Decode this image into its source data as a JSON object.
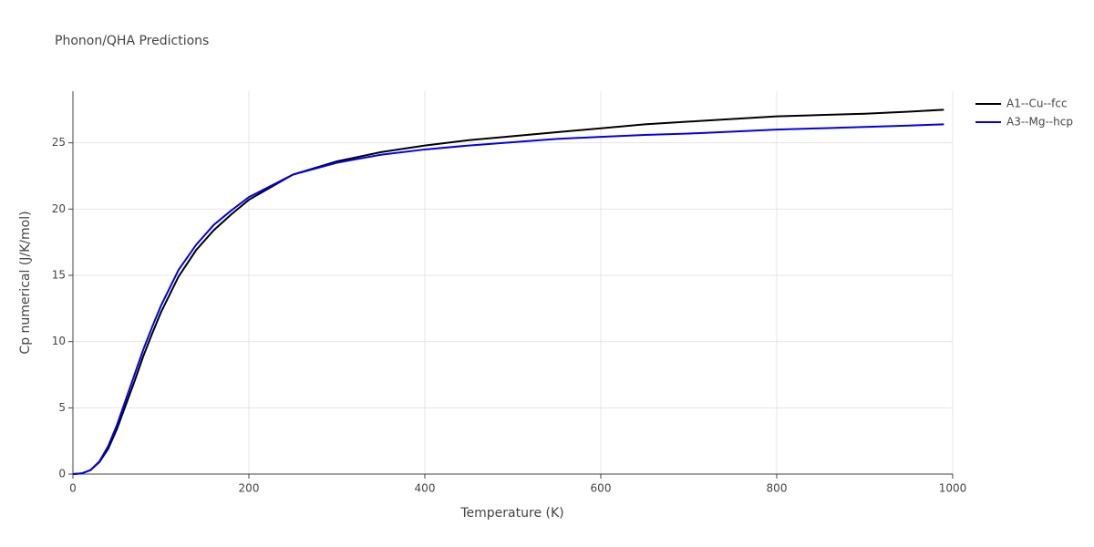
{
  "chart_data": {
    "type": "line",
    "title": "Phonon/QHA Predictions",
    "x_label": "Temperature (K)",
    "y_label": "Cp numerical (J/K/mol)",
    "x": [
      0,
      10,
      20,
      30,
      40,
      50,
      60,
      70,
      80,
      90,
      100,
      120,
      140,
      160,
      180,
      200,
      250,
      300,
      350,
      400,
      450,
      500,
      550,
      600,
      650,
      700,
      750,
      800,
      850,
      900,
      950,
      990
    ],
    "series": [
      {
        "name": "A1--Cu--fcc",
        "color": "#000000",
        "values": [
          0,
          0.05,
          0.3,
          0.9,
          1.9,
          3.4,
          5.2,
          7.0,
          8.9,
          10.6,
          12.2,
          14.9,
          16.9,
          18.4,
          19.6,
          20.7,
          22.6,
          23.6,
          24.3,
          24.8,
          25.2,
          25.5,
          25.8,
          26.1,
          26.4,
          26.6,
          26.8,
          27.0,
          27.1,
          27.2,
          27.35,
          27.5
        ]
      },
      {
        "name": "A3--Mg--hcp",
        "color": "#0000ee",
        "values": [
          0,
          0.05,
          0.3,
          0.95,
          2.1,
          3.7,
          5.6,
          7.5,
          9.4,
          11.1,
          12.7,
          15.4,
          17.3,
          18.8,
          19.9,
          20.9,
          22.6,
          23.5,
          24.1,
          24.5,
          24.8,
          25.05,
          25.3,
          25.45,
          25.6,
          25.7,
          25.85,
          26.0,
          26.1,
          26.2,
          26.3,
          26.4
        ]
      }
    ],
    "xlim": [
      0,
      1000
    ],
    "xticks": [
      0,
      200,
      400,
      600,
      800,
      1000
    ],
    "ylim": [
      0,
      28.9
    ],
    "yticks": [
      0,
      5,
      10,
      15,
      20,
      25
    ],
    "grid": true
  }
}
